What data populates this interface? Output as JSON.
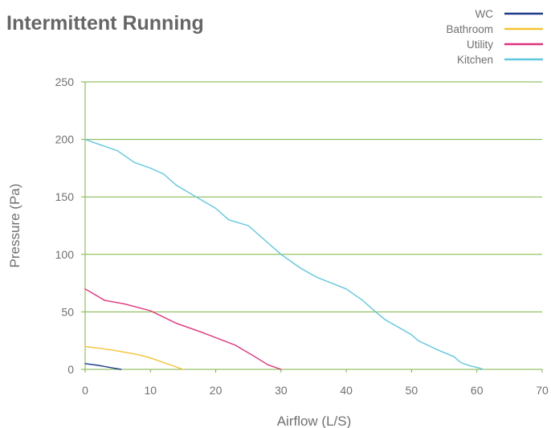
{
  "chart_data": {
    "type": "line",
    "title": "Intermittent Running",
    "xlabel": "Airflow (L/S)",
    "ylabel": "Pressure (Pa)",
    "xlim": [
      0,
      70
    ],
    "ylim": [
      0,
      250
    ],
    "x_ticks": [
      0,
      10,
      20,
      30,
      40,
      50,
      60,
      70
    ],
    "y_ticks": [
      0,
      50,
      100,
      150,
      200,
      250
    ],
    "grid": "horizontal",
    "legend_position": "top-right",
    "colors": {
      "grid": "#7cb342",
      "axis": "#7cb342",
      "text": "#707070",
      "title": "#666666"
    },
    "series": [
      {
        "name": "WC",
        "color": "#1f3b8c",
        "x": [
          0,
          2,
          4,
          5.5
        ],
        "y": [
          5,
          3.5,
          1.5,
          0
        ]
      },
      {
        "name": "Bathroom",
        "color": "#f5c232",
        "x": [
          0,
          4,
          8,
          10,
          12,
          14,
          15
        ],
        "y": [
          20,
          17,
          13,
          10,
          6,
          2,
          0
        ]
      },
      {
        "name": "Utility",
        "color": "#e0317a",
        "x": [
          0,
          1.5,
          3,
          6,
          10,
          14,
          18,
          23,
          26,
          28,
          30
        ],
        "y": [
          70,
          65,
          60,
          57,
          51,
          40,
          32,
          21,
          11,
          4,
          0
        ]
      },
      {
        "name": "Kitchen",
        "color": "#5ec8e0",
        "x": [
          0,
          2.5,
          5,
          7.5,
          10,
          12,
          14,
          17,
          20,
          22,
          25,
          28,
          30,
          33,
          35.5,
          40,
          42.5,
          44.5,
          46,
          48.5,
          50,
          51,
          54,
          56.5,
          57.5,
          59,
          60.5,
          61
        ],
        "y": [
          200,
          195,
          190,
          180,
          175,
          170,
          160,
          150,
          140,
          130,
          125,
          110,
          100,
          88,
          80,
          70,
          60,
          50,
          43,
          35,
          30,
          25,
          17,
          11,
          6,
          3,
          1,
          0
        ]
      }
    ]
  }
}
